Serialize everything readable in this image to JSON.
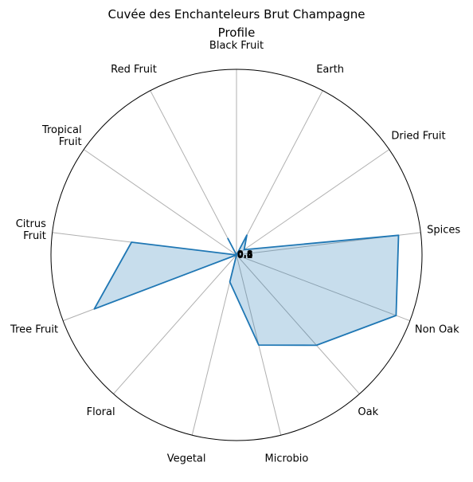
{
  "chart_data": {
    "type": "radar",
    "title_line1": "Cuvée des Enchanteleurs Brut Champagne",
    "title_line2": "Profile",
    "categories": [
      "Black Fruit",
      "Earth",
      "Dried Fruit",
      "Spices",
      "Non Oak",
      "Oak",
      "Microbio",
      "Vegetal",
      "Floral",
      "Tree Fruit",
      "Citrus\nFruit",
      "Tropical\nFruit",
      "Red Fruit"
    ],
    "series": [
      {
        "values": [
          0.0,
          0.12,
          0.05,
          0.88,
          0.92,
          0.65,
          0.5,
          0.15,
          0.0,
          0.82,
          0.57,
          0.0,
          0.1
        ]
      }
    ],
    "rlim": [
      0,
      1
    ],
    "radial_tick_labels": [
      "0.2",
      "0.4",
      "0.6",
      "0.8"
    ],
    "grid": true,
    "colors": {
      "line": "#1f77b4",
      "fill": "#1f77b4",
      "grid": "#b0b0b0"
    }
  }
}
